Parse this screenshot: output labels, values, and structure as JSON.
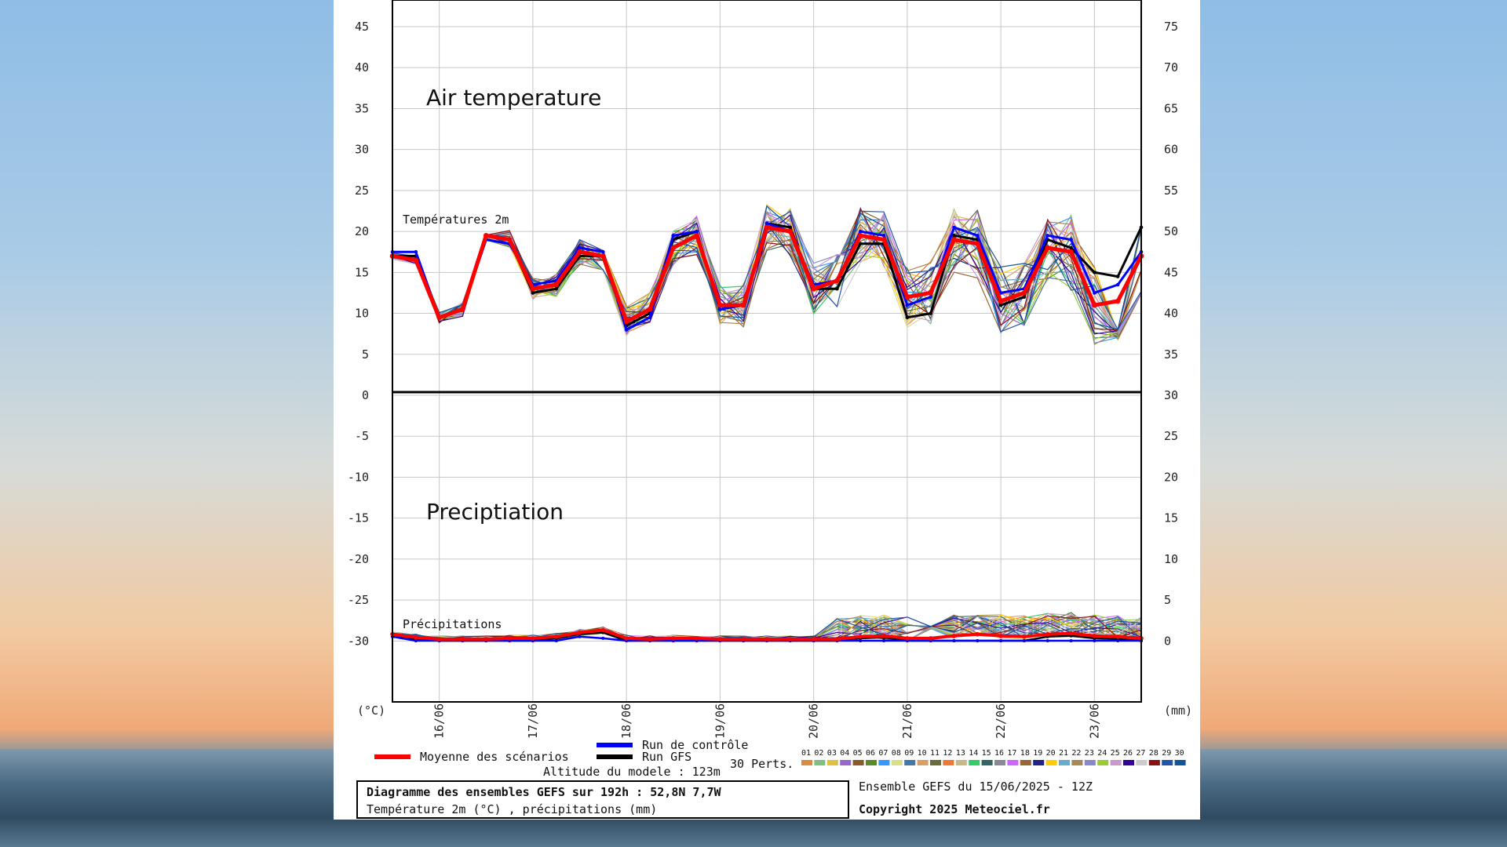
{
  "chart_data": {
    "type": "line",
    "title_left": "Diagramme des ensembles GEFS sur 192h : 52,8N 7,7W",
    "subtitle_left": "Température 2m (°C) , précipitations (mm)",
    "title_right": "Ensemble GEFS du 15/06/2025 - 12Z",
    "copyright": "Copyright 2025 Meteociel.fr",
    "altitude": "Altitude du modele : 123m",
    "overlay_temp_label": "Air temperature",
    "overlay_precip_label": "Preciptiation",
    "temp_panel_label": "Températures 2m",
    "precip_panel_label": "Précipitations",
    "y_left_unit": "(°C)",
    "y_right_unit": "(mm)",
    "y_left_ticks": [
      45,
      40,
      35,
      30,
      25,
      20,
      15,
      10,
      5,
      0,
      -5,
      -10,
      -15,
      -20,
      -25,
      -30
    ],
    "y_right_ticks": [
      75,
      70,
      65,
      60,
      55,
      50,
      45,
      40,
      35,
      30,
      25,
      20,
      15,
      10,
      5,
      0
    ],
    "x_labels": [
      "16/06",
      "17/06",
      "18/06",
      "19/06",
      "20/06",
      "21/06",
      "22/06",
      "23/06"
    ],
    "x_hours": [
      0,
      6,
      12,
      18,
      24,
      30,
      36,
      42,
      48,
      54,
      60,
      66,
      72,
      78,
      84,
      90,
      96,
      102,
      108,
      114,
      120,
      126,
      132,
      138,
      144,
      150,
      156,
      162,
      168,
      174,
      180,
      186,
      192
    ],
    "ylim_temp": [
      -30,
      45
    ],
    "ylim_precip": [
      0,
      75
    ],
    "legend": {
      "mean": "Moyenne des scénarios",
      "control": "Run de contrôle",
      "gfs": "Run GFS",
      "perts": "30 Perts."
    },
    "colors": {
      "mean": "#ff0000",
      "control": "#0000ff",
      "gfs": "#000000",
      "perts": [
        "#d98c3f",
        "#7fbf7f",
        "#e0c040",
        "#9966cc",
        "#8b5a2b",
        "#5a8a2a",
        "#3399ff",
        "#dddd88",
        "#4477aa",
        "#d9a066",
        "#6b6b3a",
        "#ee7733",
        "#c8b888",
        "#33cc66",
        "#336666",
        "#888899",
        "#cc66ff",
        "#996633",
        "#222288",
        "#ffcc00",
        "#66aacc",
        "#aa8855",
        "#8888cc",
        "#99cc33",
        "#cc99cc",
        "#330099",
        "#cccccc",
        "#881111",
        "#2255aa",
        "#115599"
      ]
    },
    "pert_labels": [
      "01",
      "02",
      "03",
      "04",
      "05",
      "06",
      "07",
      "08",
      "09",
      "10",
      "11",
      "12",
      "13",
      "14",
      "15",
      "16",
      "17",
      "18",
      "19",
      "20",
      "21",
      "22",
      "23",
      "24",
      "25",
      "26",
      "27",
      "28",
      "29",
      "30"
    ],
    "series": [
      {
        "name": "Moyenne des scénarios",
        "panel": "temp",
        "values": [
          17,
          16.5,
          9.5,
          10.5,
          19.5,
          19,
          13,
          13.5,
          17.5,
          17,
          9,
          10.5,
          18,
          19.5,
          11,
          11,
          20.5,
          20,
          13,
          14,
          19.5,
          19,
          12,
          12.5,
          19,
          18.5,
          11.5,
          12.5,
          18,
          17.5,
          11,
          11.5,
          17
        ]
      },
      {
        "name": "Run de contrôle",
        "panel": "temp",
        "values": [
          17.5,
          17.5,
          9.5,
          10.5,
          19,
          18.5,
          13.5,
          14,
          18,
          17.5,
          8,
          9.5,
          19.5,
          20,
          10.5,
          11,
          21,
          20,
          13.5,
          14,
          20,
          19.5,
          11,
          12,
          20.5,
          19.5,
          12.5,
          13,
          19.5,
          19,
          12.5,
          13.5,
          17.5
        ]
      },
      {
        "name": "Run GFS",
        "panel": "temp",
        "values": [
          17,
          17,
          9.5,
          10.5,
          19.5,
          19,
          12.5,
          13,
          17,
          17,
          8.5,
          10,
          19,
          20,
          10.5,
          11,
          21,
          20.5,
          13,
          13,
          18.5,
          18.5,
          9.5,
          10,
          19.5,
          19,
          11,
          12,
          19,
          18,
          15,
          14.5,
          20.5
        ]
      },
      {
        "name": "Moyenne des scénarios",
        "panel": "precip",
        "values": [
          0.8,
          0.4,
          0.2,
          0.2,
          0.2,
          0.3,
          0.3,
          0.5,
          1,
          1.3,
          0.3,
          0.2,
          0.3,
          0.3,
          0.2,
          0.2,
          0.2,
          0.2,
          0.2,
          0.2,
          0.5,
          0.6,
          0.3,
          0.3,
          0.6,
          0.8,
          0.6,
          0.5,
          0.8,
          0.9,
          0.6,
          0.5,
          0.3
        ]
      },
      {
        "name": "Run de contrôle",
        "panel": "precip",
        "values": [
          0.5,
          0,
          0,
          0,
          0,
          0,
          0,
          0,
          0.5,
          0.3,
          0,
          0,
          0,
          0,
          0,
          0,
          0,
          0,
          0,
          0,
          0,
          0,
          0,
          0,
          0,
          0,
          0,
          0,
          0,
          0,
          0,
          0,
          0
        ]
      },
      {
        "name": "Run GFS",
        "panel": "precip",
        "values": [
          0.5,
          0.2,
          0,
          0,
          0,
          0,
          0,
          0.3,
          0.8,
          1,
          0,
          0,
          0,
          0,
          0,
          0,
          0,
          0,
          0,
          0,
          0.3,
          0.4,
          0,
          0,
          0,
          0,
          0,
          0,
          0.5,
          0.6,
          0.3,
          0.2,
          0
        ]
      }
    ],
    "grid": true
  }
}
